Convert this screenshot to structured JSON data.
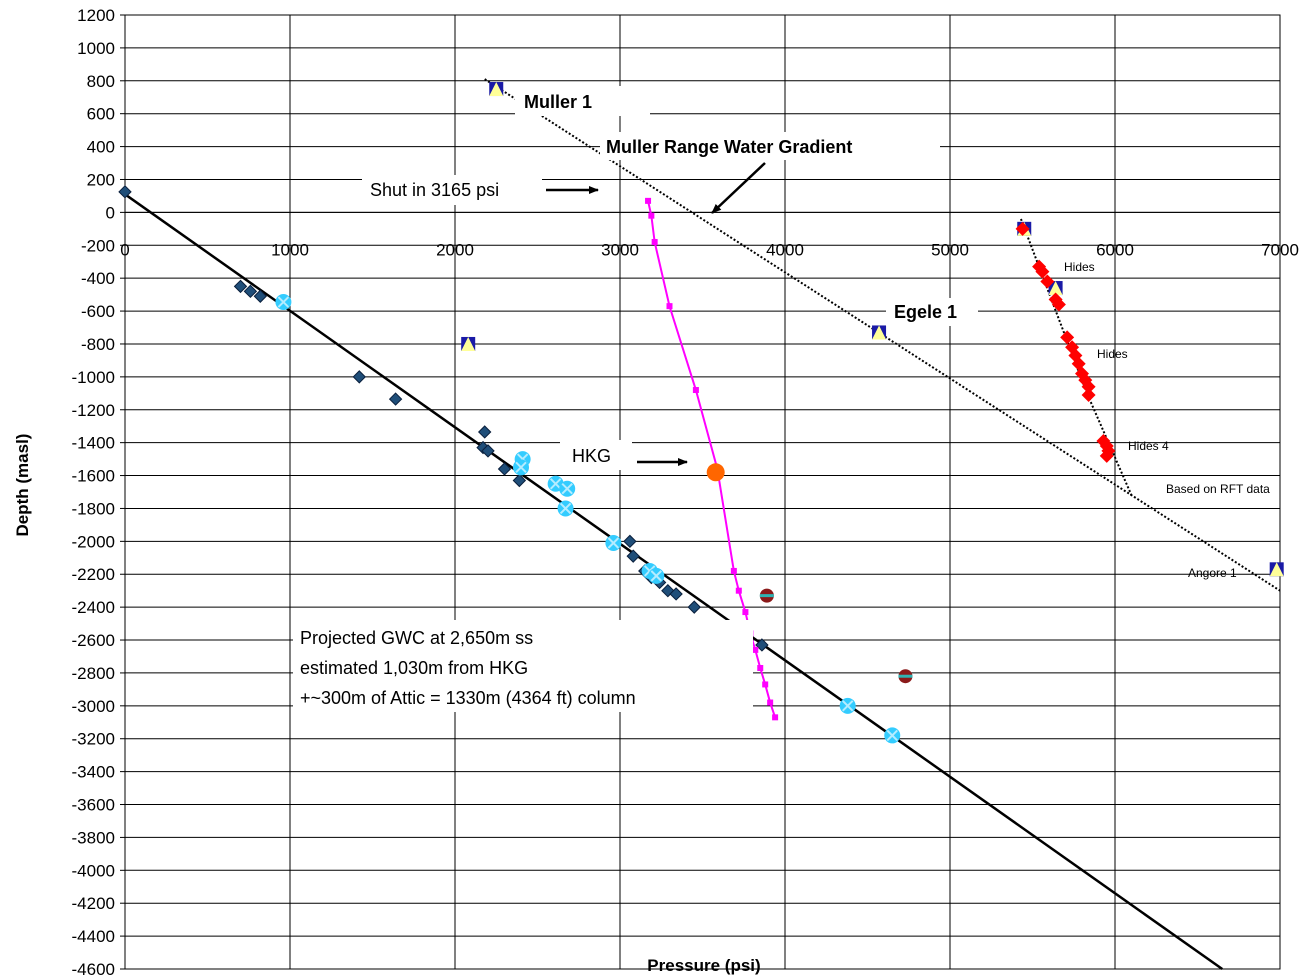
{
  "chart_data": {
    "type": "scatter",
    "xlabel": "Pressure (psi)",
    "ylabel": "Depth (masl)",
    "xlim": [
      0,
      7000
    ],
    "ylim": [
      -4600,
      1200
    ],
    "x_ticks": [
      0,
      1000,
      2000,
      3000,
      4000,
      5000,
      6000,
      7000
    ],
    "y_ticks": [
      1200,
      1000,
      800,
      600,
      400,
      200,
      0,
      -200,
      -400,
      -600,
      -800,
      -1000,
      -1200,
      -1400,
      -1600,
      -1800,
      -2000,
      -2200,
      -2400,
      -2600,
      -2800,
      -3000,
      -3200,
      -3400,
      -3600,
      -3800,
      -4000,
      -4200,
      -4400,
      -4600
    ],
    "grid": true,
    "series": [
      {
        "marker": "diamond-navy",
        "color": "#1f4e79",
        "points": [
          [
            0,
            125
          ],
          [
            700,
            -450
          ],
          [
            760,
            -480
          ],
          [
            820,
            -510
          ],
          [
            1420,
            -1000
          ],
          [
            1640,
            -1135
          ],
          [
            2180,
            -1335
          ],
          [
            2170,
            -1430
          ],
          [
            2200,
            -1450
          ],
          [
            2300,
            -1560
          ],
          [
            2390,
            -1630
          ],
          [
            3060,
            -2000
          ],
          [
            3080,
            -2090
          ],
          [
            3150,
            -2180
          ],
          [
            3190,
            -2220
          ],
          [
            3240,
            -2250
          ],
          [
            3290,
            -2300
          ],
          [
            3340,
            -2320
          ],
          [
            3450,
            -2400
          ],
          [
            3860,
            -2630
          ]
        ]
      },
      {
        "marker": "x-circle-cyan",
        "color": "#33ccff",
        "points": [
          [
            960,
            -545
          ],
          [
            2410,
            -1500
          ],
          [
            2400,
            -1550
          ],
          [
            2610,
            -1650
          ],
          [
            2680,
            -1680
          ],
          [
            2670,
            -1800
          ],
          [
            2960,
            -2010
          ],
          [
            3180,
            -2180
          ],
          [
            3220,
            -2210
          ],
          [
            4380,
            -3000
          ],
          [
            4650,
            -3180
          ]
        ]
      },
      {
        "marker": "triangle-yellow",
        "color": "#ffff99",
        "points": [
          [
            2250,
            750
          ],
          [
            2080,
            -800
          ],
          [
            4570,
            -730
          ],
          [
            5450,
            -100
          ],
          [
            5640,
            -460
          ],
          [
            6980,
            -2170
          ]
        ]
      },
      {
        "marker": "diamond-red",
        "color": "#ff0000",
        "points": [
          [
            5440,
            -100
          ],
          [
            5540,
            -330
          ],
          [
            5560,
            -360
          ],
          [
            5590,
            -420
          ],
          [
            5640,
            -530
          ],
          [
            5660,
            -560
          ],
          [
            5710,
            -760
          ],
          [
            5740,
            -820
          ],
          [
            5760,
            -870
          ],
          [
            5780,
            -920
          ],
          [
            5800,
            -980
          ],
          [
            5820,
            -1020
          ],
          [
            5840,
            -1060
          ],
          [
            5840,
            -1110
          ],
          [
            5930,
            -1390
          ],
          [
            5950,
            -1420
          ],
          [
            5960,
            -1450
          ],
          [
            5950,
            -1480
          ]
        ]
      },
      {
        "marker": "circle-maroon",
        "color": "#8b1a1a",
        "points": [
          [
            3890,
            -2330
          ],
          [
            4730,
            -2820
          ]
        ]
      },
      {
        "name": "HKG",
        "marker": "square-magenta-line",
        "color": "#ff00ff",
        "points": [
          [
            3170,
            70
          ],
          [
            3190,
            -20
          ],
          [
            3210,
            -180
          ],
          [
            3300,
            -570
          ],
          [
            3460,
            -1080
          ],
          [
            3590,
            -1560
          ],
          [
            3690,
            -2180
          ],
          [
            3720,
            -2300
          ],
          [
            3760,
            -2430
          ],
          [
            3790,
            -2560
          ],
          [
            3820,
            -2660
          ],
          [
            3850,
            -2770
          ],
          [
            3880,
            -2870
          ],
          [
            3910,
            -2980
          ],
          [
            3940,
            -3070
          ]
        ]
      },
      {
        "name": "HKG",
        "marker": "circle-orange",
        "color": "#ff6600",
        "points": [
          [
            3580,
            -1580
          ]
        ]
      }
    ],
    "lines": [
      {
        "name": "regional-gradient",
        "style": "solid",
        "color": "#000000",
        "points": [
          [
            0,
            110
          ],
          [
            6650,
            -4600
          ]
        ]
      },
      {
        "name": "Muller Range Water Gradient",
        "style": "dotted",
        "color": "#000000",
        "points": [
          [
            2180,
            810
          ],
          [
            7000,
            -2300
          ]
        ]
      },
      {
        "name": "Hides trend",
        "style": "dotted",
        "color": "#000000",
        "points": [
          [
            5430,
            -40
          ],
          [
            5830,
            -1100
          ],
          [
            6100,
            -1720
          ]
        ]
      }
    ],
    "annotations": {
      "muller1": "Muller 1",
      "mrwg": "Muller Range Water Gradient",
      "shutin": "Shut in 3165 psi",
      "hkg": "HKG",
      "egele": "Egele 1",
      "hides1": "Hides",
      "hides2": "Hides",
      "hides4": "Hides 4",
      "rft": "Based on RFT data",
      "angore": "Angore 1",
      "gwc1": "Projected GWC at 2,650m ss",
      "gwc2": "estimated 1,030m  from HKG",
      "gwc3": "+~300m of Attic = 1330m (4364 ft) column"
    }
  }
}
